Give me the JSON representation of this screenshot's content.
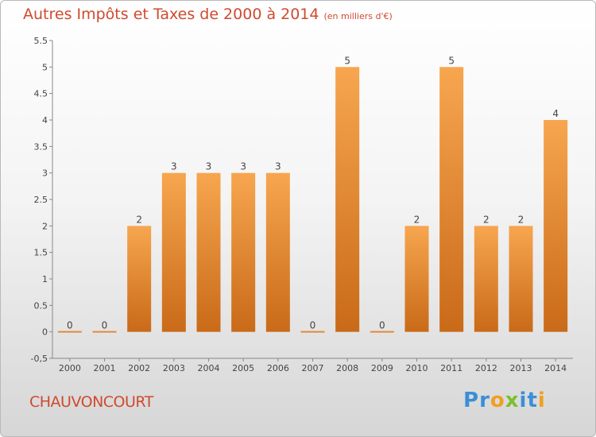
{
  "header": {
    "title": "Autres Impôts et Taxes de 2000 à 2014",
    "unit": "(en milliers d'€)"
  },
  "footer": {
    "commune": "CHAUVONCOURT",
    "logo_letters": [
      {
        "char": "P",
        "color": "#3b8fd6"
      },
      {
        "char": "r",
        "color": "#3b8fd6"
      },
      {
        "char": "o",
        "color": "#f0a020"
      },
      {
        "char": "x",
        "color": "#7cbf2f"
      },
      {
        "char": "i",
        "color": "#3b8fd6"
      },
      {
        "char": "t",
        "color": "#3b8fd6"
      },
      {
        "char": "i",
        "color": "#f0a020"
      }
    ]
  },
  "chart_data": {
    "type": "bar",
    "title": "Autres Impôts et Taxes de 2000 à 2014",
    "subtitle": "(en milliers d'€)",
    "categories": [
      "2000",
      "2001",
      "2002",
      "2003",
      "2004",
      "2005",
      "2006",
      "2007",
      "2008",
      "2009",
      "2010",
      "2011",
      "2012",
      "2013",
      "2014"
    ],
    "values": [
      0,
      0,
      2,
      3,
      3,
      3,
      3,
      0,
      5,
      0,
      2,
      5,
      2,
      2,
      4
    ],
    "ylim": [
      -0.5,
      5.5
    ],
    "yticks": [
      "-0,5",
      "0",
      "0.5",
      "1",
      "1.5",
      "2",
      "2.5",
      "3",
      "3.5",
      "4",
      "4.5",
      "5",
      "5.5"
    ],
    "ytick_values": [
      -0.5,
      0,
      0.5,
      1,
      1.5,
      2,
      2.5,
      3,
      3.5,
      4,
      4.5,
      5,
      5.5
    ],
    "bar_color_top": "#f7a64f",
    "bar_color_bottom": "#c96a18",
    "grid": false
  }
}
